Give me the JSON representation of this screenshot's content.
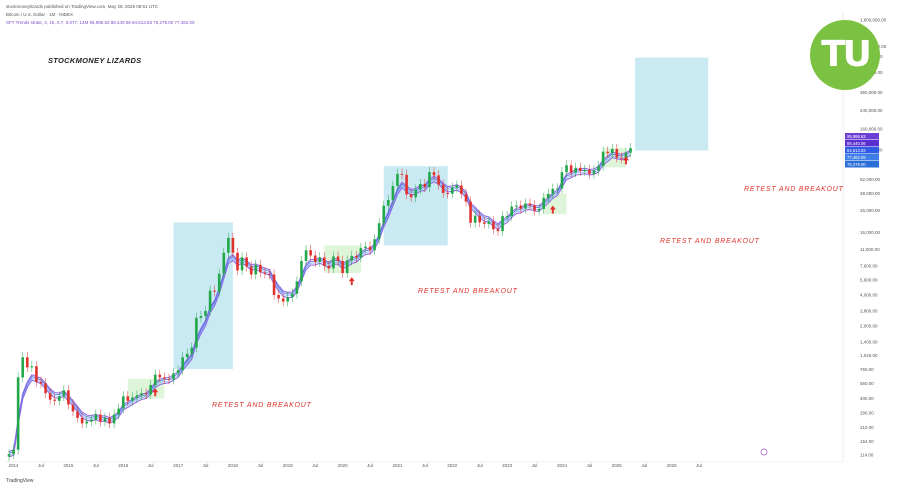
{
  "header": {
    "line1": "stockmoneylizards published on TradingView.com, May 28, 2025 09:51 UTC",
    "line2": "Bitcoin / U.S. Dollar · 1M · INDEX",
    "line3": "SFT Trends strate, 2, 15, 0.7, 0.077, 14M  95,986.63  88,440.06  84,613.83  76,279.00  77,462.09"
  },
  "footer": {
    "brand": "TradingView"
  },
  "logo": {
    "text": "TU"
  },
  "colors": {
    "up": "#22a84a",
    "down": "#e0322d",
    "band_outer": "#8a5be0",
    "band_inner": "#4a6fe0",
    "box_blue": "#bfe6f0",
    "box_green": "#d4f2cc",
    "logo": "#7cc242"
  },
  "chart_data": {
    "type": "candlestick",
    "title": "STOCKMONEY LIZARDS",
    "xlabel": "",
    "ylabel": "",
    "y_scale": "log",
    "x_ticks": [
      "Jul",
      "2014",
      "Jul",
      "2015",
      "Jul",
      "2016",
      "Jul",
      "2017",
      "Jul",
      "2018",
      "Jul",
      "2019",
      "Jul",
      "2020",
      "Jul",
      "2021",
      "Jul",
      "2022",
      "Jul",
      "2023",
      "Jul",
      "2024",
      "Jul",
      "2025",
      "Jul",
      "2026",
      "Jul"
    ],
    "y_ticks": [
      "1,800,000.00",
      "1,000,000.00",
      "800,000.00",
      "560,000.00",
      "360,000.00",
      "240,000.00",
      "160,000.00",
      "100,000.00",
      "52,000.00",
      "38,000.00",
      "26,000.00",
      "16,000.00",
      "11,000.00",
      "7,600.00",
      "5,600.00",
      "4,000.00",
      "2,800.00",
      "2,000.00",
      "1,400.00",
      "1,040.00",
      "760.00",
      "560.00",
      "400.00",
      "290.00",
      "210.00",
      "154.00",
      "114.00"
    ],
    "price_labels": [
      "95,986.63",
      "88,440.06",
      "84,613.83",
      "77,462.09",
      "76,279.00"
    ],
    "annotations": [
      "RETEST AND BREAKOUT",
      "RETEST AND BREAKOUT",
      "RETEST AND BREAKOUT",
      "RETEST AND BREAKOUT"
    ],
    "monthly_close": [
      116,
      128,
      640,
      1000,
      800,
      820,
      580,
      560,
      450,
      390,
      380,
      420,
      480,
      350,
      300,
      260,
      230,
      240,
      250,
      280,
      240,
      260,
      230,
      280,
      320,
      420,
      380,
      410,
      430,
      450,
      440,
      540,
      680,
      640,
      620,
      610,
      700,
      750,
      1000,
      1080,
      1240,
      2400,
      2500,
      2800,
      4400,
      4300,
      6400,
      10200,
      14200,
      10200,
      6900,
      9200,
      7500,
      6300,
      7800,
      6600,
      6400,
      6300,
      4000,
      3700,
      3450,
      3800,
      4100,
      5400,
      8500,
      10800,
      9600,
      8300,
      9200,
      7600,
      7200,
      9400,
      8500,
      6500,
      8600,
      9500,
      9200,
      11300,
      11700,
      10800,
      13800,
      19700,
      29000,
      33000,
      45000,
      58900,
      57700,
      37300,
      35000,
      41400,
      47100,
      43800,
      61300,
      57000,
      46300,
      38500,
      37900,
      43200,
      45500,
      37700,
      31800,
      19900,
      23300,
      20050,
      19400,
      20500,
      17200,
      16500,
      23100,
      23100,
      28500,
      29200,
      27200,
      30500,
      29200,
      26000,
      27000,
      34500,
      37700,
      42300,
      42600,
      61100,
      71300,
      60600,
      67500,
      62700,
      64600,
      58900,
      63300,
      70200,
      96400,
      93400,
      102400,
      84400,
      82500,
      94200,
      104500
    ],
    "boxes": [
      {
        "type": "blue",
        "from": "2016-12",
        "to": "2018-01",
        "y_top": 20000,
        "y_bottom": 770
      },
      {
        "type": "blue",
        "from": "2020-10",
        "to": "2021-12",
        "y_top": 70000,
        "y_bottom": 12000
      },
      {
        "type": "blue",
        "from": "2025-05",
        "to": "2026-09",
        "y_top": 780000,
        "y_bottom": 99000
      },
      {
        "type": "green",
        "from": "2016-02",
        "to": "2016-10",
        "y_top": 620,
        "y_bottom": 400
      },
      {
        "type": "green",
        "from": "2019-09",
        "to": "2020-05",
        "y_top": 12000,
        "y_bottom": 6500
      },
      {
        "type": "green",
        "from": "2023-09",
        "to": "2024-02",
        "y_top": 38000,
        "y_bottom": 24000
      },
      {
        "type": "green",
        "from": "2024-10",
        "to": "2025-03",
        "y_top": 105000,
        "y_bottom": 68000
      }
    ]
  }
}
